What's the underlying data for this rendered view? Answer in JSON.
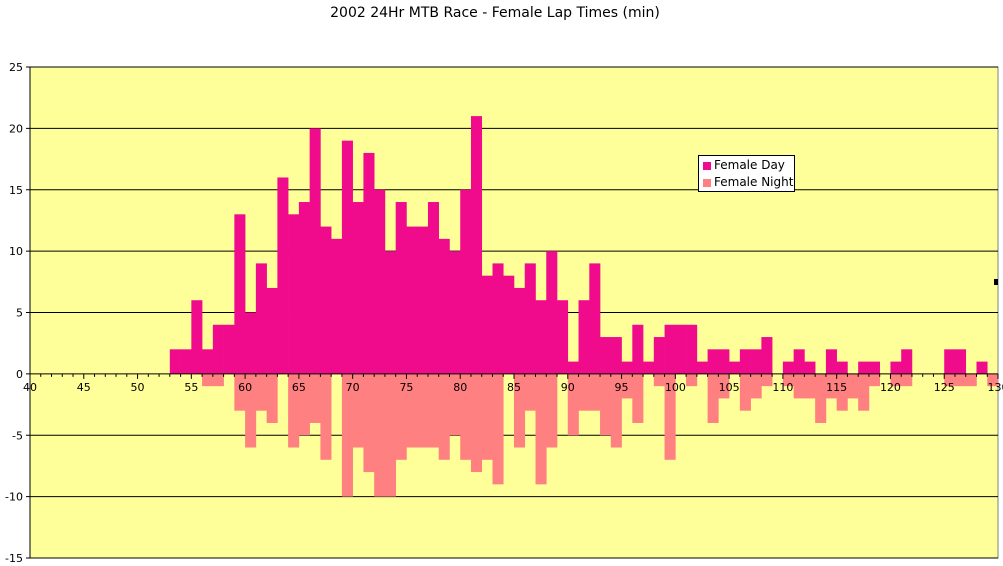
{
  "chart_data": {
    "type": "bar",
    "title": "2002 24Hr MTB Race - Female Lap Times (min)",
    "xlabel": "",
    "ylabel": "",
    "xlim": [
      40,
      130
    ],
    "ylim": [
      -15,
      25
    ],
    "x_ticks": [
      "40",
      "45",
      "50",
      "55",
      "60",
      "65",
      "70",
      "75",
      "80",
      "85",
      "90",
      "95",
      "100",
      "105",
      "110",
      "115",
      "120",
      "125",
      "130"
    ],
    "y_ticks": [
      "25",
      "20",
      "15",
      "10",
      "5",
      "0",
      "-5",
      "-10",
      "-15"
    ],
    "grid": true,
    "legend_position": "upper-right",
    "plot_background": "#ffff99",
    "series": [
      {
        "name": "Female Day",
        "color": "#f00a8c",
        "x": [
          53,
          54,
          55,
          56,
          57,
          58,
          59,
          60,
          61,
          62,
          63,
          64,
          65,
          66,
          67,
          68,
          69,
          70,
          71,
          72,
          73,
          74,
          75,
          76,
          77,
          78,
          79,
          80,
          81,
          82,
          83,
          84,
          85,
          86,
          87,
          88,
          89,
          90,
          91,
          92,
          93,
          94,
          95,
          96,
          97,
          98,
          99,
          100,
          101,
          102,
          103,
          104,
          105,
          106,
          107,
          108,
          109,
          110,
          111,
          112,
          113,
          114,
          115,
          116,
          117,
          118,
          119,
          120,
          121,
          122,
          123,
          124,
          125,
          126,
          127,
          128,
          129
        ],
        "values": [
          2,
          2,
          6,
          2,
          4,
          4,
          13,
          5,
          9,
          7,
          16,
          13,
          14,
          20,
          12,
          11,
          19,
          14,
          18,
          15,
          10,
          14,
          12,
          12,
          14,
          11,
          10,
          15,
          21,
          8,
          9,
          8,
          7,
          9,
          6,
          10,
          6,
          1,
          6,
          9,
          3,
          3,
          1,
          4,
          1,
          3,
          4,
          4,
          4,
          1,
          2,
          2,
          1,
          2,
          2,
          3,
          0,
          1,
          2,
          1,
          0,
          2,
          1,
          0,
          1,
          1,
          0,
          1,
          2,
          0,
          0,
          0,
          2,
          2,
          0,
          1,
          0
        ]
      },
      {
        "name": "Female Night",
        "color": "#ff8080",
        "x": [
          53,
          54,
          55,
          56,
          57,
          58,
          59,
          60,
          61,
          62,
          63,
          64,
          65,
          66,
          67,
          68,
          69,
          70,
          71,
          72,
          73,
          74,
          75,
          76,
          77,
          78,
          79,
          80,
          81,
          82,
          83,
          84,
          85,
          86,
          87,
          88,
          89,
          90,
          91,
          92,
          93,
          94,
          95,
          96,
          97,
          98,
          99,
          100,
          101,
          102,
          103,
          104,
          105,
          106,
          107,
          108,
          109,
          110,
          111,
          112,
          113,
          114,
          115,
          116,
          117,
          118,
          119,
          120,
          121,
          122,
          123,
          124,
          125,
          126,
          127,
          128,
          129
        ],
        "values": [
          0,
          0,
          0,
          -1,
          -1,
          0,
          -3,
          -6,
          -3,
          -4,
          0,
          -6,
          -5,
          -4,
          -7,
          0,
          -10,
          -6,
          -8,
          -10,
          -10,
          -7,
          -6,
          -6,
          -6,
          -7,
          -5,
          -7,
          -8,
          -7,
          -9,
          0,
          -6,
          -3,
          -9,
          -6,
          0,
          -5,
          -3,
          -3,
          -5,
          -6,
          -2,
          -4,
          0,
          -1,
          -7,
          0,
          -1,
          0,
          -4,
          -2,
          0,
          -3,
          -2,
          -1,
          0,
          -1,
          -2,
          -2,
          -4,
          -2,
          -3,
          -2,
          -3,
          -1,
          0,
          -1,
          -1,
          0,
          0,
          0,
          -1,
          -1,
          -1,
          0,
          -1
        ]
      }
    ]
  }
}
